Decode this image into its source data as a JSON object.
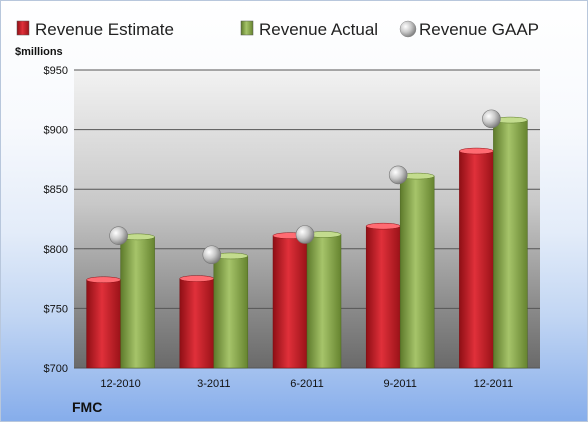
{
  "chart_data": {
    "type": "bar",
    "ylabel": "$millions",
    "ylim": [
      700,
      950
    ],
    "y_ticks": [
      700,
      750,
      800,
      850,
      900,
      950
    ],
    "y_tick_labels": [
      "$700",
      "$750",
      "$800",
      "$850",
      "$900",
      "$950"
    ],
    "categories": [
      "12-2010",
      "3-2011",
      "6-2011",
      "9-2011",
      "12-2011"
    ],
    "series": [
      {
        "name": "Revenue Estimate",
        "kind": "bar",
        "color": "#d0202a",
        "values": [
          774,
          775,
          811,
          819,
          882
        ]
      },
      {
        "name": "Revenue Actual",
        "kind": "bar",
        "color": "#8aaa4a",
        "values": [
          810,
          794,
          812,
          861,
          908
        ]
      },
      {
        "name": "Revenue GAAP",
        "kind": "marker",
        "color": "#c8c8c8",
        "values": [
          811,
          795,
          812,
          862,
          909
        ]
      }
    ],
    "grid": true,
    "legend": "top"
  },
  "brand": "FMC"
}
